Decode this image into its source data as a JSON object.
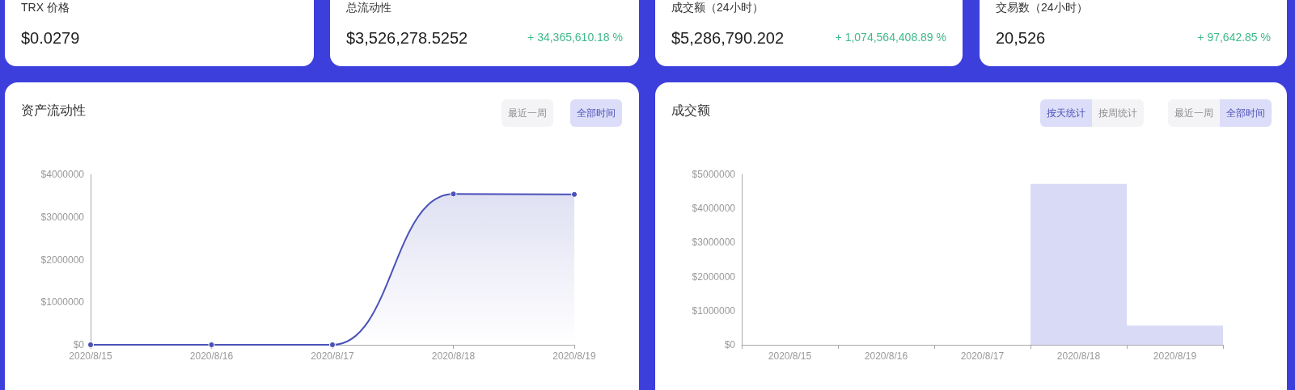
{
  "chart_data": [
    {
      "type": "other",
      "title": "TRX 价格",
      "annotations": [
        "$0.0279"
      ]
    },
    {
      "type": "other",
      "title": "总流动性",
      "annotations": [
        "$3,526,278.5252",
        "+ 34,365,610.18 %"
      ]
    },
    {
      "type": "other",
      "title": "成交额（24小时）",
      "annotations": [
        "$5,286,790.202",
        "+ 1,074,564,408.89 %"
      ]
    },
    {
      "type": "other",
      "title": "交易数（24小时）",
      "annotations": [
        "20,526",
        "+ 97,642.85 %"
      ]
    },
    {
      "type": "area",
      "title": "资产流动性",
      "categories": [
        "2020/8/15",
        "2020/8/16",
        "2020/8/17",
        "2020/8/18",
        "2020/8/19"
      ],
      "values": [
        0,
        0,
        0,
        3540000,
        3530000
      ],
      "color": "#4b52b8",
      "marker": "circle",
      "ylim": [
        0,
        4000000
      ],
      "yticks": [
        {
          "value": 0,
          "label": "$0"
        },
        {
          "value": 1000000,
          "label": "$1000000"
        },
        {
          "value": 2000000,
          "label": "$2000000"
        },
        {
          "value": 3000000,
          "label": "$3000000"
        },
        {
          "value": 4000000,
          "label": "$4000000"
        }
      ],
      "annotations": [
        "最近一周",
        "全部时间"
      ]
    },
    {
      "type": "bar",
      "title": "成交额",
      "categories": [
        "2020/8/15",
        "2020/8/16",
        "2020/8/17",
        "2020/8/18",
        "2020/8/19"
      ],
      "values": [
        0,
        0,
        0,
        4720000,
        560000
      ],
      "color": "#d9dbf6",
      "ylim": [
        0,
        5000000
      ],
      "yticks": [
        {
          "value": 0,
          "label": "$0"
        },
        {
          "value": 1000000,
          "label": "$1000000"
        },
        {
          "value": 2000000,
          "label": "$2000000"
        },
        {
          "value": 3000000,
          "label": "$3000000"
        },
        {
          "value": 4000000,
          "label": "$4000000"
        },
        {
          "value": 5000000,
          "label": "$5000000"
        }
      ],
      "annotations": [
        "按天统计",
        "按周统计",
        "最近一周",
        "全部时间"
      ]
    }
  ]
}
